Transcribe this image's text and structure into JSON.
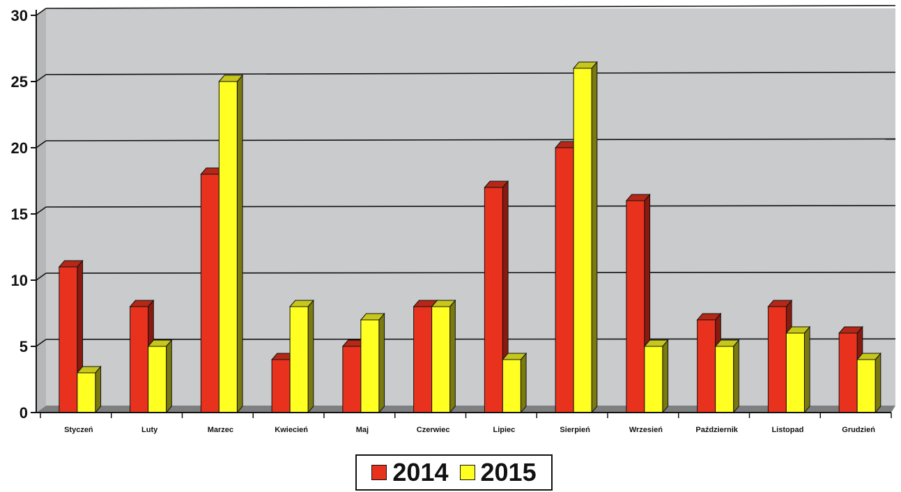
{
  "chart_data": {
    "type": "bar",
    "categories": [
      "Styczeń",
      "Luty",
      "Marzec",
      "Kwiecień",
      "Maj",
      "Czerwiec",
      "Lipiec",
      "Sierpień",
      "Wrzesień",
      "Październik",
      "Listopad",
      "Grudzień"
    ],
    "series": [
      {
        "name": "2014",
        "values": [
          11,
          8,
          18,
          4,
          5,
          8,
          17,
          20,
          16,
          7,
          8,
          6
        ],
        "color": "#e8321e",
        "side_color": "#8a1a10"
      },
      {
        "name": "2015",
        "values": [
          3,
          5,
          25,
          8,
          7,
          8,
          4,
          26,
          5,
          5,
          6,
          4
        ],
        "color": "#ffff22",
        "side_color": "#7a7a10"
      }
    ],
    "yticks": [
      0,
      5,
      10,
      15,
      20,
      25,
      30
    ],
    "ylim": [
      0,
      30
    ],
    "grid": true,
    "legend": "bottom-center",
    "plot_background": "#c9cbcc",
    "title": "",
    "xlabel": "",
    "ylabel": ""
  }
}
